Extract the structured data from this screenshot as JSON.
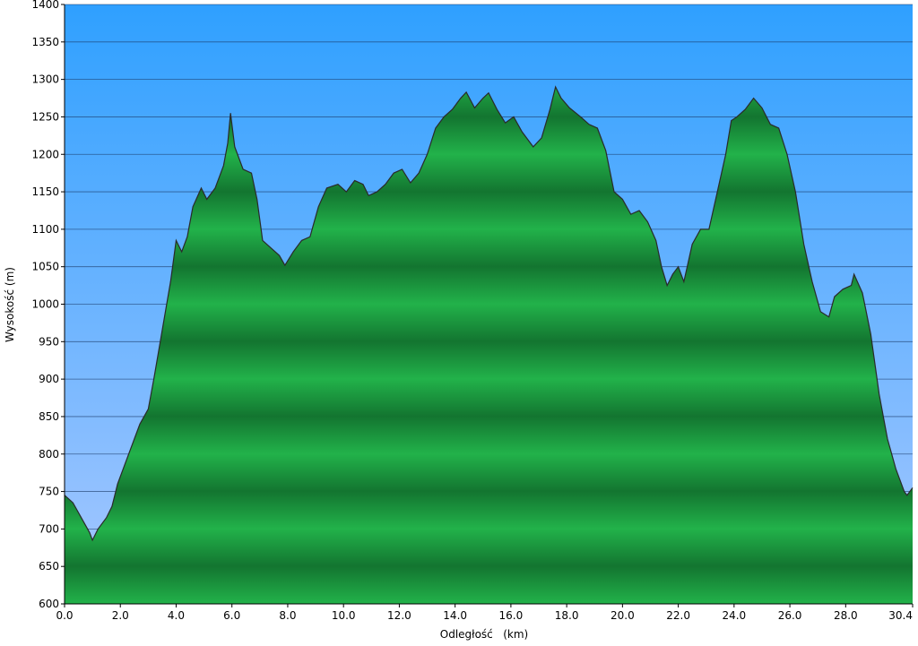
{
  "chart_data": {
    "type": "area",
    "x_label": "Odległość   (km)",
    "y_label": "Wysokość (m)",
    "color": "#1fa544",
    "line_color": "#2a2a2a",
    "grid": true,
    "xlim": [
      0,
      30.4
    ],
    "ylim": [
      600,
      1400
    ],
    "xticks": [
      {
        "value": 0,
        "label": "0.0"
      },
      {
        "value": 2,
        "label": "2.0"
      },
      {
        "value": 4,
        "label": "4.0"
      },
      {
        "value": 6,
        "label": "6.0"
      },
      {
        "value": 8,
        "label": "8.0"
      },
      {
        "value": 10,
        "label": "10.0"
      },
      {
        "value": 12,
        "label": "12.0"
      },
      {
        "value": 14,
        "label": "14.0"
      },
      {
        "value": 16,
        "label": "16.0"
      },
      {
        "value": 18,
        "label": "18.0"
      },
      {
        "value": 20,
        "label": "20.0"
      },
      {
        "value": 22,
        "label": "22.0"
      },
      {
        "value": 24,
        "label": "24.0"
      },
      {
        "value": 26,
        "label": "26.0"
      },
      {
        "value": 28,
        "label": "28.0"
      },
      30.4
    ],
    "yticks": [
      600,
      650,
      700,
      750,
      800,
      850,
      900,
      950,
      1000,
      1050,
      1100,
      1150,
      1200,
      1250,
      1300,
      1350,
      1400
    ],
    "x": [
      0,
      0.3,
      0.6,
      0.9,
      1.0,
      1.2,
      1.5,
      1.7,
      1.9,
      2.2,
      2.5,
      2.7,
      3.0,
      3.2,
      3.5,
      3.8,
      4.0,
      4.2,
      4.4,
      4.6,
      4.9,
      5.1,
      5.4,
      5.7,
      5.85,
      5.95,
      6.1,
      6.4,
      6.7,
      6.9,
      7.1,
      7.4,
      7.7,
      7.9,
      8.2,
      8.5,
      8.8,
      9.1,
      9.4,
      9.8,
      10.1,
      10.4,
      10.7,
      10.9,
      11.2,
      11.5,
      11.8,
      12.1,
      12.4,
      12.7,
      13.0,
      13.3,
      13.6,
      13.9,
      14.2,
      14.4,
      14.7,
      15.0,
      15.2,
      15.5,
      15.8,
      16.1,
      16.4,
      16.8,
      17.1,
      17.4,
      17.6,
      17.8,
      18.1,
      18.5,
      18.8,
      19.1,
      19.4,
      19.7,
      20.0,
      20.3,
      20.6,
      20.9,
      21.2,
      21.4,
      21.6,
      21.8,
      22.0,
      22.2,
      22.5,
      22.8,
      23.1,
      23.4,
      23.7,
      23.9,
      24.1,
      24.4,
      24.7,
      25.0,
      25.3,
      25.6,
      25.9,
      26.2,
      26.5,
      26.8,
      27.1,
      27.4,
      27.6,
      27.9,
      28.2,
      28.3,
      28.6,
      28.9,
      29.2,
      29.5,
      29.8,
      30.1,
      30.2,
      30.4
    ],
    "values": [
      745,
      735,
      715,
      695,
      685,
      700,
      715,
      730,
      760,
      790,
      820,
      840,
      860,
      900,
      965,
      1030,
      1085,
      1070,
      1090,
      1130,
      1155,
      1140,
      1155,
      1185,
      1215,
      1255,
      1210,
      1180,
      1175,
      1140,
      1085,
      1075,
      1065,
      1052,
      1070,
      1085,
      1090,
      1130,
      1155,
      1160,
      1150,
      1165,
      1160,
      1145,
      1150,
      1160,
      1175,
      1180,
      1162,
      1175,
      1200,
      1235,
      1250,
      1260,
      1275,
      1283,
      1262,
      1275,
      1282,
      1260,
      1242,
      1250,
      1230,
      1210,
      1222,
      1260,
      1290,
      1275,
      1262,
      1250,
      1240,
      1235,
      1205,
      1150,
      1140,
      1120,
      1125,
      1110,
      1085,
      1050,
      1025,
      1040,
      1050,
      1030,
      1080,
      1100,
      1100,
      1150,
      1200,
      1245,
      1250,
      1260,
      1275,
      1262,
      1240,
      1235,
      1200,
      1150,
      1080,
      1030,
      990,
      983,
      1010,
      1020,
      1025,
      1040,
      1015,
      960,
      880,
      820,
      780,
      750,
      745,
      755
    ]
  }
}
